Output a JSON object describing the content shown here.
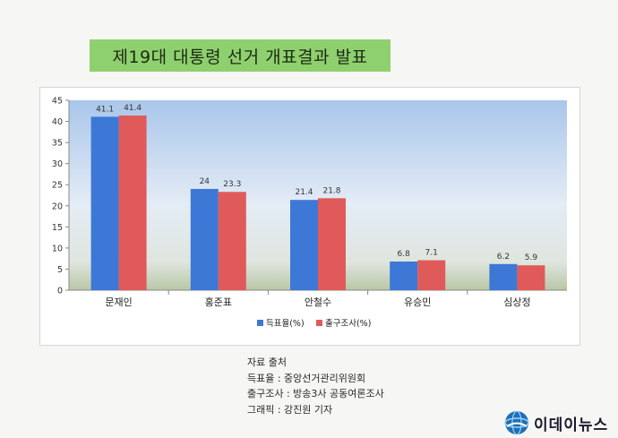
{
  "title": "제19대 대통령 선거 개표결과 발표",
  "chart_data": {
    "type": "bar",
    "categories": [
      "문재인",
      "홍준표",
      "안철수",
      "유승민",
      "심상정"
    ],
    "series": [
      {
        "name": "득표율(%)",
        "values": [
          41.1,
          24,
          21.4,
          6.8,
          6.2
        ],
        "color": "#3d78d6"
      },
      {
        "name": "출구조사(%)",
        "values": [
          41.4,
          23.3,
          21.8,
          7.1,
          5.9
        ],
        "color": "#e05a5a"
      }
    ],
    "data_labels": [
      [
        "41.1",
        "24",
        "21.4",
        "6.8",
        "6.2"
      ],
      [
        "41.4",
        "23.3",
        "21.8",
        "7.1",
        "5.9"
      ]
    ],
    "yticks": [
      "0",
      "5",
      "10",
      "15",
      "20",
      "25",
      "30",
      "35",
      "40",
      "45"
    ],
    "ylim": [
      0,
      45
    ],
    "legend_position": "bottom",
    "title": "",
    "xlabel": "",
    "ylabel": ""
  },
  "source": {
    "heading": "자료 출처",
    "lines": [
      "득표율 : 중앙선거관리위원회",
      "출구조사 : 방송3사 공동여론조사",
      "그래픽 : 강진원 기자"
    ]
  },
  "logo": {
    "text": "이데이뉴스",
    "icon": "globe-icon"
  }
}
